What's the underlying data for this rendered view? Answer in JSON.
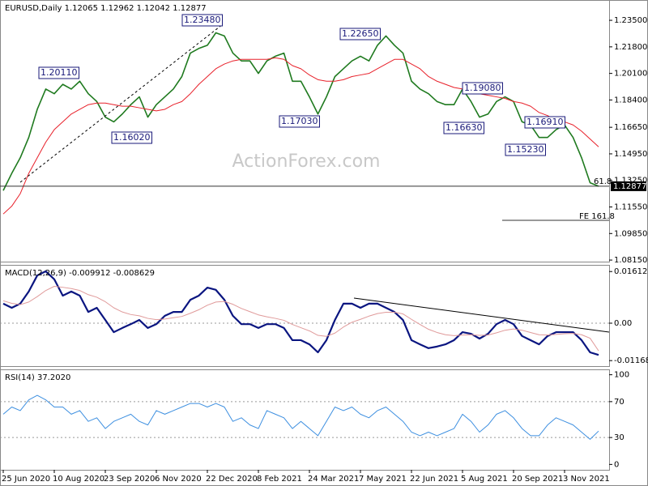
{
  "watermark": "ActionForex.com",
  "chart_data": [
    {
      "type": "line",
      "title": "EURUSD,Daily  1.12065 1.12962 1.12042 1.12877",
      "categories": [
        "25 Jun 2020",
        null,
        null,
        null,
        null,
        null,
        "10 Aug 2020",
        null,
        null,
        null,
        null,
        null,
        "23 Sep 2020",
        null,
        null,
        null,
        null,
        null,
        "6 Nov 2020",
        null,
        null,
        null,
        null,
        null,
        "22 Dec 2020",
        null,
        null,
        null,
        null,
        null,
        "8 Feb 2021",
        null,
        null,
        null,
        null,
        null,
        "24 Mar 2021",
        null,
        null,
        null,
        null,
        null,
        "7 May 2021",
        null,
        null,
        null,
        null,
        null,
        "22 Jun 2021",
        null,
        null,
        null,
        null,
        null,
        "5 Aug 2021",
        null,
        null,
        null,
        null,
        null,
        "20 Sep 2021",
        null,
        null,
        null,
        null,
        null,
        "3 Nov 2021",
        null,
        null,
        null,
        null
      ],
      "series": [
        {
          "color": "#1f7a1f",
          "values": [
            1.126,
            1.137,
            1.147,
            1.16,
            1.178,
            1.191,
            1.188,
            1.194,
            1.191,
            1.196,
            1.188,
            1.183,
            1.173,
            1.17,
            1.175,
            1.181,
            1.186,
            1.173,
            1.181,
            1.186,
            1.191,
            1.199,
            1.214,
            1.217,
            1.219,
            1.227,
            1.225,
            1.214,
            1.209,
            1.209,
            1.201,
            1.209,
            1.212,
            1.214,
            1.196,
            1.196,
            1.186,
            1.175,
            1.186,
            1.199,
            1.204,
            1.209,
            1.212,
            1.209,
            1.219,
            1.225,
            1.219,
            1.214,
            1.196,
            1.191,
            1.188,
            1.183,
            1.181,
            1.181,
            1.191,
            1.183,
            1.173,
            1.175,
            1.183,
            1.186,
            1.183,
            1.17,
            1.168,
            1.16,
            1.16,
            1.165,
            1.168,
            1.16,
            1.147,
            1.131,
            1.12877
          ]
        },
        {
          "color": "#e8202a",
          "values": [
            1.111,
            1.116,
            1.124,
            1.137,
            1.147,
            1.157,
            1.165,
            1.17,
            1.175,
            1.178,
            1.181,
            1.182,
            1.182,
            1.181,
            1.18,
            1.18,
            1.179,
            1.178,
            1.177,
            1.178,
            1.181,
            1.183,
            1.188,
            1.194,
            1.199,
            1.204,
            1.207,
            1.209,
            1.21,
            1.21,
            1.21,
            1.21,
            1.211,
            1.21,
            1.206,
            1.204,
            1.2,
            1.197,
            1.196,
            1.196,
            1.197,
            1.199,
            1.2,
            1.201,
            1.204,
            1.207,
            1.21,
            1.21,
            1.207,
            1.204,
            1.199,
            1.196,
            1.194,
            1.192,
            1.191,
            1.19,
            1.188,
            1.187,
            1.186,
            1.185,
            1.183,
            1.182,
            1.18,
            1.176,
            1.174,
            1.171,
            1.17,
            1.168,
            1.164,
            1.159,
            1.154
          ]
        }
      ],
      "ylim": [
        1.0805,
        1.248
      ],
      "yticks": [
        {
          "value": 1.235,
          "label": "1.23500"
        },
        {
          "value": 1.218,
          "label": "1.21800"
        },
        {
          "value": 1.201,
          "label": "1.20100"
        },
        {
          "value": 1.184,
          "label": "1.18400"
        },
        {
          "value": 1.1665,
          "label": "1.16650"
        },
        {
          "value": 1.1495,
          "label": "1.14950"
        },
        {
          "value": 1.1325,
          "label": "1.13250"
        },
        {
          "value": 1.1155,
          "label": "1.11550"
        },
        {
          "value": 1.0985,
          "label": "1.09850"
        },
        {
          "value": 1.0815,
          "label": "1.08150"
        }
      ],
      "current_price": {
        "value": 1.12877,
        "label": "1.12877"
      },
      "annotations": [
        "1.20110",
        "1.23480",
        "1.16020",
        "1.17030",
        "1.22650",
        "1.19080",
        "1.16630",
        "1.16910",
        "1.15230"
      ],
      "level_labels": [
        "61.8",
        "FE 161.8"
      ]
    },
    {
      "type": "line",
      "title": "MACD(12,26,9) -0.009912 -0.008629",
      "series": [
        {
          "color": "#0a1580",
          "values": [
            0.0061,
            0.0048,
            0.0061,
            0.0099,
            0.0149,
            0.0162,
            0.0137,
            0.0086,
            0.0099,
            0.0086,
            0.0035,
            0.0048,
            0.001,
            -0.0028,
            -0.0015,
            -0.0003,
            0.001,
            -0.0015,
            -0.0003,
            0.0023,
            0.0035,
            0.0035,
            0.0073,
            0.0086,
            0.0111,
            0.0104,
            0.0073,
            0.0023,
            -0.0003,
            -0.0003,
            -0.0015,
            -0.0003,
            -0.0003,
            -0.0015,
            -0.0053,
            -0.0053,
            -0.0066,
            -0.0091,
            -0.0053,
            0.001,
            0.0061,
            0.0061,
            0.0048,
            0.0061,
            0.0061,
            0.0048,
            0.0035,
            0.001,
            -0.0053,
            -0.0066,
            -0.0078,
            -0.0073,
            -0.0066,
            -0.0053,
            -0.0028,
            -0.0033,
            -0.0048,
            -0.0033,
            -0.0003,
            0.001,
            -0.0003,
            -0.004,
            -0.0053,
            -0.0066,
            -0.004,
            -0.0028,
            -0.0028,
            -0.0028,
            -0.0053,
            -0.0091,
            -0.009912
          ]
        },
        {
          "color": "#e09a9a",
          "values": [
            0.007,
            0.0062,
            0.0058,
            0.0066,
            0.0083,
            0.0102,
            0.0115,
            0.0112,
            0.0108,
            0.0102,
            0.0089,
            0.0081,
            0.0067,
            0.0048,
            0.0035,
            0.0027,
            0.0023,
            0.0015,
            0.0011,
            0.0013,
            0.0017,
            0.0021,
            0.0031,
            0.0042,
            0.0056,
            0.0066,
            0.0068,
            0.0059,
            0.0046,
            0.0036,
            0.0026,
            0.002,
            0.0015,
            0.0009,
            -0.0004,
            -0.0014,
            -0.0024,
            -0.0038,
            -0.0041,
            -0.0031,
            -0.0012,
            0.0003,
            0.0012,
            0.0022,
            0.003,
            0.0034,
            0.0034,
            0.0029,
            0.0012,
            -0.0004,
            -0.0019,
            -0.0029,
            -0.0036,
            -0.0039,
            -0.0037,
            -0.0036,
            -0.0038,
            -0.0037,
            -0.003,
            -0.0022,
            -0.0018,
            -0.0022,
            -0.0029,
            -0.0036,
            -0.0037,
            -0.0035,
            -0.0033,
            -0.0032,
            -0.0036,
            -0.0047,
            -0.008629
          ]
        }
      ],
      "ylim": [
        -0.0134,
        0.0182
      ],
      "yticks": [
        0.016122,
        {
          "value": 0,
          "label": "0.00"
        },
        -0.011681
      ],
      "levels": [
        0
      ]
    },
    {
      "type": "line",
      "title": "RSI(14) 37.2020",
      "series": [
        {
          "color": "#3d8fe0",
          "values": [
            56,
            64,
            60,
            72,
            77,
            72,
            64,
            64,
            56,
            60,
            48,
            52,
            40,
            48,
            52,
            56,
            48,
            44,
            60,
            56,
            60,
            64,
            68,
            68,
            64,
            68,
            64,
            48,
            52,
            44,
            40,
            60,
            56,
            52,
            40,
            48,
            40,
            32,
            48,
            64,
            60,
            64,
            56,
            52,
            60,
            64,
            56,
            48,
            36,
            32,
            36,
            32,
            36,
            40,
            56,
            48,
            36,
            44,
            56,
            60,
            52,
            40,
            32,
            32,
            44,
            52,
            48,
            44,
            36,
            28,
            37.2
          ]
        }
      ],
      "ylim": [
        -6,
        106
      ],
      "yticks": [
        100,
        70,
        30,
        0
      ],
      "levels": [
        70,
        30
      ]
    }
  ]
}
